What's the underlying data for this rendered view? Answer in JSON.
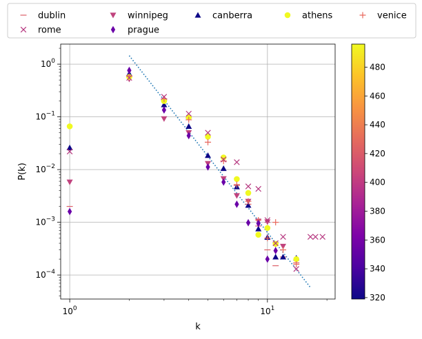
{
  "chart_data": {
    "type": "scatter",
    "xlabel": "k",
    "ylabel": "P(k)",
    "xscale": "log",
    "yscale": "log",
    "xlim": [
      0.9,
      22
    ],
    "ylim": [
      3.5e-05,
      2.4
    ],
    "grid": true,
    "legend": {
      "placement": "top",
      "columns": 5
    },
    "x_ticks": [
      {
        "value": 1,
        "label": "10^0"
      },
      {
        "value": 10,
        "label": "10^1"
      }
    ],
    "y_ticks": [
      {
        "value": 0.0001,
        "label": "10^-4"
      },
      {
        "value": 0.001,
        "label": "10^-3"
      },
      {
        "value": 0.01,
        "label": "10^-2"
      },
      {
        "value": 0.1,
        "label": "10^-1"
      },
      {
        "value": 1,
        "label": "10^0"
      }
    ],
    "colorbar": {
      "colormap": "plasma",
      "range": [
        319,
        496
      ],
      "ticks": [
        320,
        340,
        360,
        380,
        400,
        420,
        440,
        460,
        480
      ]
    },
    "fit_line": {
      "style": "dotted",
      "color": "#1f77b4",
      "points": [
        [
          2,
          1.45
        ],
        [
          16.5,
          5.8e-05
        ]
      ]
    },
    "series": [
      {
        "name": "dublin",
        "marker": "hline",
        "color": "#dd5e66",
        "points": [
          [
            1,
            0.002
          ],
          [
            2,
            0.58
          ],
          [
            3,
            0.21
          ],
          [
            4,
            0.095
          ],
          [
            5,
            0.033
          ],
          [
            6,
            0.0145
          ],
          [
            7,
            0.005
          ],
          [
            8,
            0.0022
          ],
          [
            9,
            0.00085
          ],
          [
            10,
            0.0003
          ],
          [
            11,
            0.00015
          ],
          [
            12,
            0.00022
          ],
          [
            14,
            0.00017
          ]
        ]
      },
      {
        "name": "winnipeg",
        "marker": "triangle-down",
        "color": "#c0437e",
        "points": [
          [
            1,
            0.0058
          ],
          [
            2,
            0.52
          ],
          [
            3,
            0.092
          ],
          [
            4,
            0.05
          ],
          [
            5,
            0.013
          ],
          [
            6,
            0.0067
          ],
          [
            7,
            0.0032
          ],
          [
            8,
            0.0025
          ],
          [
            9,
            0.00105
          ],
          [
            10,
            0.00102
          ],
          [
            11,
            0.00038
          ],
          [
            12,
            0.00035
          ]
        ]
      },
      {
        "name": "canberra",
        "marker": "triangle-up",
        "color": "#0d0887",
        "points": [
          [
            1,
            0.026
          ],
          [
            2,
            0.66
          ],
          [
            3,
            0.17
          ],
          [
            4,
            0.066
          ],
          [
            5,
            0.0185
          ],
          [
            6,
            0.0105
          ],
          [
            7,
            0.0047
          ],
          [
            8,
            0.0021
          ],
          [
            9,
            0.00075
          ],
          [
            10,
            0.00052
          ],
          [
            11,
            0.00022
          ],
          [
            12,
            0.00022
          ],
          [
            14,
            0.00021
          ]
        ]
      },
      {
        "name": "athens",
        "marker": "circle",
        "color": "#f0f921",
        "points": [
          [
            1,
            0.066
          ],
          [
            2,
            0.57
          ],
          [
            3,
            0.2
          ],
          [
            4,
            0.098
          ],
          [
            5,
            0.042
          ],
          [
            6,
            0.017
          ],
          [
            7,
            0.0066
          ],
          [
            8,
            0.0036
          ],
          [
            9,
            0.00058
          ],
          [
            10,
            0.00078
          ],
          [
            11,
            0.00039
          ],
          [
            14,
            0.0002
          ]
        ]
      },
      {
        "name": "venice",
        "marker": "plus",
        "color": "#e8685c",
        "points": [
          [
            2,
            0.6
          ],
          [
            3,
            0.22
          ],
          [
            4,
            0.088
          ],
          [
            5,
            0.033
          ],
          [
            6,
            0.0145
          ],
          [
            7,
            0.0052
          ],
          [
            8,
            0.0025
          ],
          [
            9,
            0.0011
          ],
          [
            10,
            0.0005
          ],
          [
            11,
            0.001
          ],
          [
            12,
            0.0003
          ],
          [
            14,
            0.00016
          ]
        ]
      },
      {
        "name": "rome",
        "marker": "x",
        "color": "#b5357e",
        "points": [
          [
            1,
            0.022
          ],
          [
            2,
            0.55
          ],
          [
            3,
            0.24
          ],
          [
            4,
            0.115
          ],
          [
            5,
            0.05
          ],
          [
            6,
            0.0155
          ],
          [
            7,
            0.0138
          ],
          [
            8,
            0.0048
          ],
          [
            9,
            0.0043
          ],
          [
            10,
            0.0011
          ],
          [
            11,
            0.0004
          ],
          [
            12,
            0.00053
          ],
          [
            14,
            0.00013
          ],
          [
            16.5,
            0.00053
          ],
          [
            17.5,
            0.00053
          ],
          [
            19,
            0.00053
          ]
        ]
      },
      {
        "name": "prague",
        "marker": "thin-diamond",
        "color": "#6a00a8",
        "points": [
          [
            1,
            0.0016
          ],
          [
            2,
            0.76
          ],
          [
            3,
            0.135
          ],
          [
            4,
            0.044
          ],
          [
            5,
            0.0112
          ],
          [
            6,
            0.0058
          ],
          [
            7,
            0.0022
          ],
          [
            8,
            0.00098
          ],
          [
            9,
            0.00095
          ],
          [
            10,
            0.0002
          ],
          [
            11,
            0.00029
          ]
        ]
      }
    ]
  }
}
